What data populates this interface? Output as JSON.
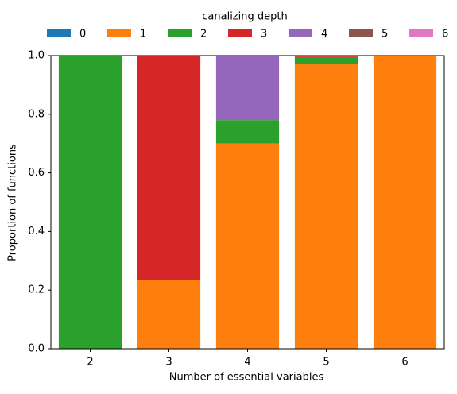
{
  "chart_data": {
    "type": "stacked_bar",
    "legend_title": "canalizing depth",
    "xlabel": "Number of essential variables",
    "ylabel": "Proportion of functions",
    "categories": [
      "2",
      "3",
      "4",
      "5",
      "6"
    ],
    "series": [
      {
        "name": "0",
        "color": "#1f77b4",
        "values": [
          0,
          0,
          0,
          0,
          0
        ]
      },
      {
        "name": "1",
        "color": "#ff7f0e",
        "values": [
          0,
          0.233,
          0.7,
          0.97,
          1.0
        ]
      },
      {
        "name": "2",
        "color": "#2ca02c",
        "values": [
          1.0,
          0,
          0.08,
          0.025,
          0
        ]
      },
      {
        "name": "3",
        "color": "#d62728",
        "values": [
          0,
          0.767,
          0,
          0.005,
          0
        ]
      },
      {
        "name": "4",
        "color": "#9467bd",
        "values": [
          0,
          0,
          0.22,
          0,
          0
        ]
      },
      {
        "name": "5",
        "color": "#8c564b",
        "values": [
          0,
          0,
          0,
          0,
          0
        ]
      },
      {
        "name": "6",
        "color": "#e377c2",
        "values": [
          0,
          0,
          0,
          0,
          0
        ]
      }
    ],
    "ylim": [
      0,
      1
    ],
    "yticks": [
      {
        "value": 0,
        "label": "0.0"
      },
      0.2,
      0.4,
      0.6,
      0.8,
      {
        "value": 1,
        "label": "1.0"
      }
    ],
    "grid": false,
    "legend_position": "top"
  }
}
